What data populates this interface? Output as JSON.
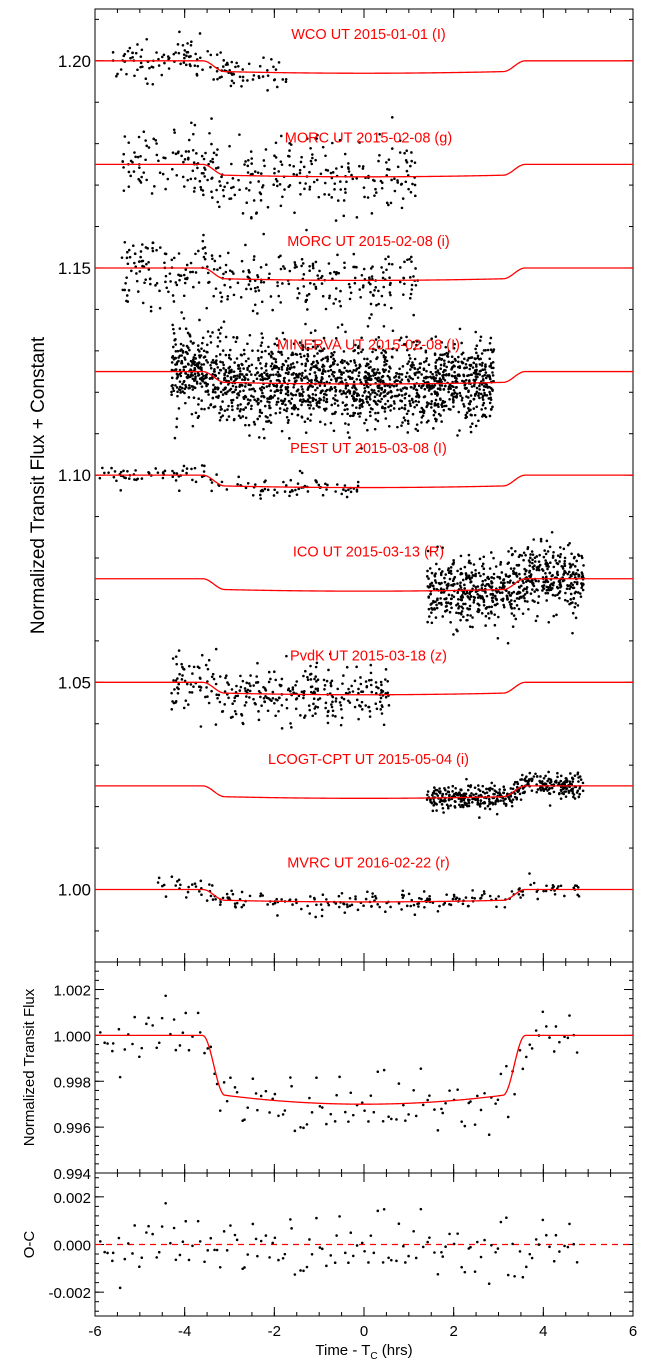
{
  "chart_data": [
    {
      "type": "scatter",
      "panel": "top",
      "ylabel": "Normalized Transit Flux + Constant",
      "xlim": [
        -6,
        6
      ],
      "ylim": [
        0.9825,
        1.2125
      ],
      "yticks": [
        "1.00",
        "1.05",
        "1.10",
        "1.15",
        "1.20"
      ],
      "transit_model": {
        "depth": 0.003,
        "t_ingress_start": -3.6,
        "t_ingress_end": -3.1,
        "t_egress_start": 3.1,
        "t_egress_end": 3.6
      },
      "model_color": "#ff0000",
      "point_color": "#000000",
      "series": [
        {
          "name": "WCO UT 2015-01-01 (I)",
          "offset": 1.2,
          "x_range": [
            -5.6,
            -1.7
          ],
          "scatter": 0.0025,
          "n_points": 140
        },
        {
          "name": "MORC UT 2015-02-08 (g)",
          "offset": 1.175,
          "x_range": [
            -5.4,
            1.2
          ],
          "scatter": 0.0045,
          "n_points": 320
        },
        {
          "name": "MORC UT 2015-02-08 (i)",
          "offset": 1.15,
          "x_range": [
            -5.4,
            1.2
          ],
          "scatter": 0.004,
          "n_points": 320
        },
        {
          "name": "MINERVA UT 2015-02-08 (I)",
          "offset": 1.125,
          "x_range": [
            -4.3,
            2.9
          ],
          "scatter": 0.005,
          "n_points": 1800
        },
        {
          "name": "PEST UT 2015-03-08 (I)",
          "offset": 1.1,
          "x_range": [
            -5.9,
            -0.1
          ],
          "scatter": 0.0012,
          "n_points": 130
        },
        {
          "name": "ICO UT 2015-03-13 (R)",
          "offset": 1.075,
          "x_range": [
            1.4,
            4.9
          ],
          "scatter": 0.004,
          "n_points": 700
        },
        {
          "name": "PvdK UT 2015-03-18 (z)",
          "offset": 1.05,
          "x_range": [
            -4.3,
            0.6
          ],
          "scatter": 0.0035,
          "n_points": 330
        },
        {
          "name": "LCOGT-CPT UT 2015-05-04 (i)",
          "offset": 1.025,
          "x_range": [
            1.4,
            4.9
          ],
          "scatter": 0.0015,
          "n_points": 420
        },
        {
          "name": "MVRC UT 2016-02-22 (r)",
          "offset": 1.0,
          "x_range": [
            -4.6,
            4.8
          ],
          "scatter": 0.0012,
          "n_points": 220
        }
      ]
    },
    {
      "type": "scatter",
      "panel": "middle",
      "ylabel": "Normalized Transit Flux",
      "xlim": [
        -6,
        6
      ],
      "ylim": [
        0.994,
        1.0032
      ],
      "yticks": [
        "0.994",
        "0.996",
        "0.998",
        "1.000",
        "1.002"
      ],
      "binned_x_range": [
        -5.9,
        4.8
      ],
      "n_points": 140,
      "scatter": 0.0007,
      "model_color": "#ff0000"
    },
    {
      "type": "scatter",
      "panel": "bottom",
      "ylabel": "O-C",
      "xlabel_main": "Time - T",
      "xlabel_sub": "C",
      "xlabel_tail": " (hrs)",
      "xlim": [
        -6,
        6
      ],
      "ylim": [
        -0.003,
        0.003
      ],
      "yticks": [
        "-0.002",
        "0.000",
        "0.002"
      ],
      "xticks": [
        "-6",
        "-4",
        "-2",
        "0",
        "2",
        "4",
        "6"
      ],
      "n_points": 140,
      "scatter": 0.0007,
      "zero_line_color": "#ff0000"
    }
  ]
}
